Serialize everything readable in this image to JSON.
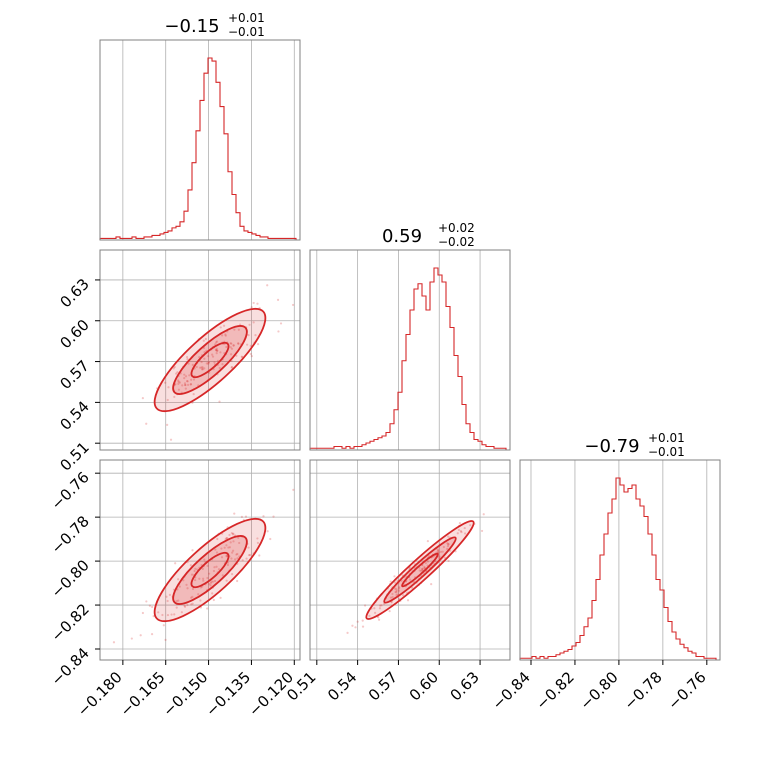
{
  "chart_data": {
    "type": "corner",
    "parameters": [
      {
        "title_median": "−0.15",
        "title_plus": "+0.01",
        "title_minus": "−0.01",
        "range": [
          -0.188,
          -0.118
        ]
      },
      {
        "title_median": "0.59",
        "title_plus": "+0.02",
        "title_minus": "−0.02",
        "range": [
          0.505,
          0.652
        ]
      },
      {
        "title_median": "−0.79",
        "title_plus": "+0.01",
        "title_minus": "−0.01",
        "range": [
          -0.845,
          -0.754
        ]
      }
    ],
    "ticks": [
      [
        -0.18,
        -0.165,
        -0.15,
        -0.135,
        -0.12
      ],
      [
        0.51,
        0.54,
        0.57,
        0.6,
        0.63
      ],
      [
        -0.84,
        -0.82,
        -0.8,
        -0.78,
        -0.76
      ]
    ],
    "tick_labels": [
      [
        "−0.180",
        "−0.165",
        "−0.150",
        "−0.135",
        "−0.120"
      ],
      [
        "0.51",
        "0.54",
        "0.57",
        "0.60",
        "0.63"
      ],
      [
        "−0.84",
        "−0.82",
        "−0.80",
        "−0.78",
        "−0.76"
      ]
    ],
    "histograms": [
      [
        1,
        1,
        1,
        1,
        2,
        1,
        1,
        1,
        2,
        1,
        1,
        2,
        2,
        3,
        3,
        4,
        5,
        6,
        8,
        9,
        12,
        19,
        33,
        51,
        72,
        92,
        110,
        120,
        118,
        104,
        88,
        70,
        45,
        30,
        18,
        9,
        6,
        5,
        4,
        3,
        2,
        2,
        1,
        1,
        1,
        1,
        1,
        1,
        1,
        0
      ],
      [
        1,
        1,
        1,
        1,
        1,
        1,
        2,
        2,
        1,
        2,
        1,
        2,
        2,
        3,
        4,
        5,
        6,
        7,
        8,
        10,
        15,
        23,
        33,
        51,
        66,
        80,
        92,
        95,
        88,
        80,
        96,
        104,
        100,
        96,
        82,
        70,
        54,
        42,
        26,
        15,
        10,
        6,
        5,
        3,
        2,
        2,
        1,
        1,
        1,
        0
      ],
      [
        1,
        1,
        1,
        2,
        1,
        2,
        1,
        2,
        2,
        3,
        4,
        5,
        6,
        8,
        10,
        14,
        19,
        24,
        34,
        46,
        60,
        72,
        84,
        92,
        104,
        100,
        96,
        98,
        100,
        92,
        88,
        82,
        72,
        60,
        46,
        40,
        30,
        22,
        16,
        12,
        9,
        7,
        5,
        4,
        2,
        2,
        1,
        1,
        1,
        0
      ]
    ],
    "correlations": {
      "1_0": 0.95,
      "2_0": 0.95,
      "2_1": 0.99
    },
    "color": "#d62728",
    "grid": true
  }
}
